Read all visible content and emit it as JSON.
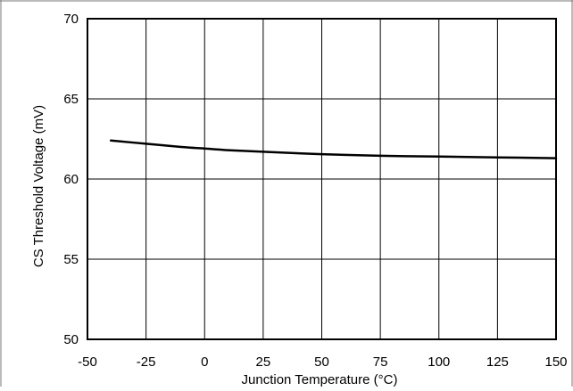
{
  "chart_data": {
    "type": "line",
    "title": "",
    "xlabel": "Junction Temperature (°C)",
    "ylabel": "CS Threshold Voltage (mV)",
    "xlim": [
      -50,
      150
    ],
    "ylim": [
      50,
      70
    ],
    "xticks": [
      -50,
      -25,
      0,
      25,
      50,
      75,
      100,
      125,
      150
    ],
    "yticks": [
      50,
      55,
      60,
      65,
      70
    ],
    "grid": true,
    "legend": "none",
    "series": [
      {
        "x": [
          -40,
          -25,
          -10,
          0,
          10,
          25,
          50,
          75,
          100,
          125,
          150
        ],
        "y": [
          62.4,
          62.2,
          62.0,
          61.9,
          61.8,
          61.7,
          61.55,
          61.45,
          61.4,
          61.35,
          61.3
        ]
      }
    ]
  },
  "colors": {
    "line": "#000000",
    "grid": "#000000",
    "background": "#ffffff"
  }
}
